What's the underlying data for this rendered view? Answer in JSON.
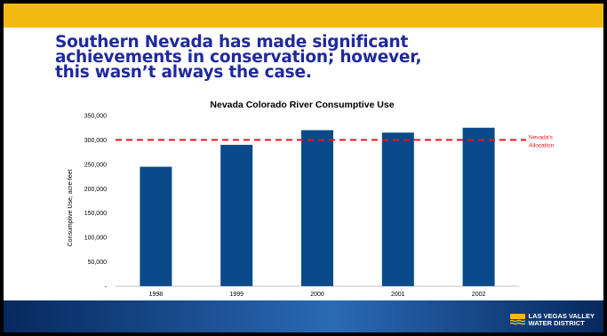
{
  "slide": {
    "title_lines": [
      "Southern Nevada has made significant",
      "achievements in conservation; however,",
      "this wasn’t always the case."
    ],
    "logo_lines": [
      "LAS VEGAS VALLEY",
      "WATER DISTRICT"
    ]
  },
  "colors": {
    "top_bar": "#f2b90f",
    "title": "#1f2a9e",
    "bar": "#0a4a8a",
    "allocation_line": "#e8141b",
    "bottom_bar_dark": "#06285e",
    "bottom_bar_light": "#2a6ab5",
    "logo_mark": "#f2b90f"
  },
  "chart_data": {
    "type": "bar",
    "title": "Nevada Colorado River Consumptive Use",
    "ylabel": "Consumptive Use, acre-feet",
    "xlabel": "",
    "categories": [
      "1998",
      "1999",
      "2000",
      "2001",
      "2002"
    ],
    "values": [
      245000,
      290000,
      320000,
      315000,
      325000
    ],
    "ylim": [
      0,
      350000
    ],
    "yticks": [
      0,
      50000,
      100000,
      150000,
      200000,
      250000,
      300000,
      350000
    ],
    "ytick_labels": [
      "-",
      "50,000",
      "100,000",
      "150,000",
      "200,000",
      "250,000",
      "300,000",
      "350,000"
    ],
    "grid": false,
    "reference_line": {
      "value": 300000,
      "label_lines": [
        "Nevada's",
        "Allocation"
      ],
      "style": "dashed"
    }
  }
}
